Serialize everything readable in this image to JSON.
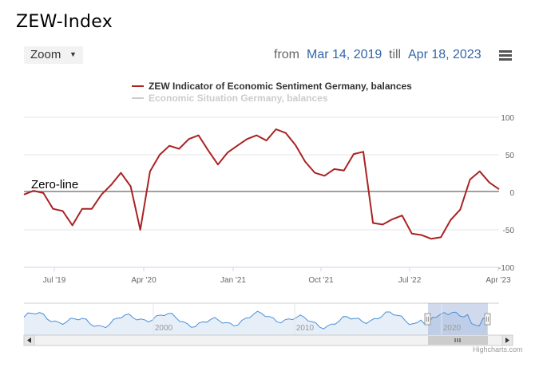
{
  "title": "ZEW-Index",
  "toolbar": {
    "zoom_label": "Zoom",
    "from_label": "from",
    "from_value": "Mar 14, 2019",
    "till_label": "till",
    "till_value": "Apr 18, 2023",
    "menu_icon": "hamburger-menu-icon"
  },
  "annotation": "Zero-line",
  "credit": "Highcharts.com",
  "colors": {
    "series1": "#aa2222",
    "series2_inactive": "#cccccc",
    "navigator": "#4a90d9",
    "link": "#3366aa"
  },
  "chart_data": {
    "type": "line",
    "title": "ZEW-Index",
    "ylim": [
      -100,
      100
    ],
    "y_ticks": [
      "100",
      "50",
      "0",
      "-50",
      "-100"
    ],
    "x_tick_labels": [
      "Jul '19",
      "Apr '20",
      "Jan '21",
      "Oct '21",
      "Jul '22",
      "Apr '23"
    ],
    "legend": [
      "ZEW Indicator of Economic Sentiment Germany, balances",
      "Economic Situation Germany, balances"
    ],
    "series": [
      {
        "name": "ZEW Indicator of Economic Sentiment Germany, balances",
        "visible": true,
        "values": [
          -3,
          2,
          -1,
          -22,
          -25,
          -44,
          -22,
          -22,
          -3,
          10,
          26,
          8,
          -50,
          28,
          50,
          62,
          58,
          71,
          76,
          56,
          37,
          53,
          62,
          71,
          76,
          69,
          84,
          79,
          63,
          41,
          26,
          22,
          31,
          29,
          51,
          54,
          -41,
          -43,
          -36,
          -31,
          -55,
          -57,
          -62,
          -60,
          -37,
          -23,
          17,
          28,
          13,
          4
        ]
      },
      {
        "name": "Economic Situation Germany, balances",
        "visible": false,
        "values": []
      }
    ],
    "navigator": {
      "x_labels": [
        "2000",
        "2010",
        "2020"
      ]
    }
  }
}
